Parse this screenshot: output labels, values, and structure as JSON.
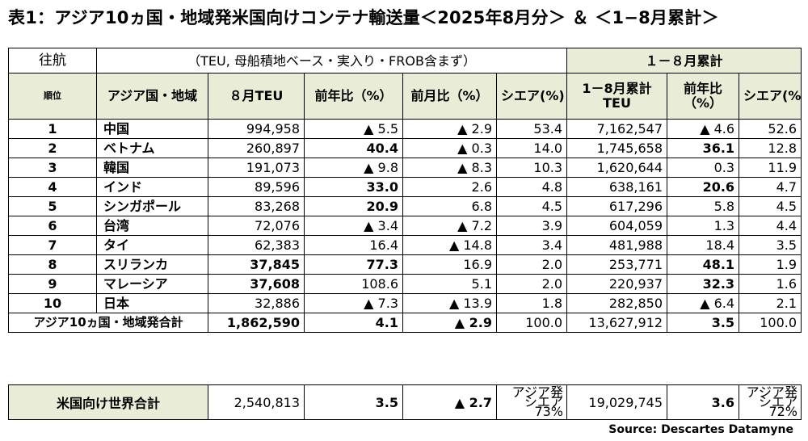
{
  "title": "表1：アジア10ヵ国・地域発米国向けコンテナ輸送量＜2025年8月分＞ ＆ ＜1−8月累計＞",
  "header": {
    "route_label": "往航",
    "note": "（TEU, 母船積地ベース・実入り・FROB含まず）",
    "cumulative_group": "１－８月累計",
    "rank": "順位",
    "country": "アジア国・地域",
    "aug_teu": "８月TEU",
    "yoy": "前年比（%）",
    "mom": "前月比（%）",
    "share": "シエア(%)",
    "cum_teu_line1": "1－8月累計",
    "cum_teu_line2": "TEU",
    "cum_yoy_line1": "前年比",
    "cum_yoy_line2": "（%）",
    "cum_share": "シエア(%)"
  },
  "rows": [
    {
      "rank": "1",
      "country": "中国",
      "teu": "994,958",
      "yoy": "▲ 5.5",
      "mom": "▲ 2.9",
      "share": "53.4",
      "cum_teu": "7,162,547",
      "cum_yoy": "▲ 4.6",
      "cum_share": "52.6"
    },
    {
      "rank": "2",
      "country": "ベトナム",
      "teu": "260,897",
      "yoy": "40.4",
      "mom": "▲ 0.3",
      "share": "14.0",
      "cum_teu": "1,745,658",
      "cum_yoy": "36.1",
      "cum_share": "12.8"
    },
    {
      "rank": "3",
      "country": "韓国",
      "teu": "191,073",
      "yoy": "▲ 9.8",
      "mom": "▲ 8.3",
      "share": "10.3",
      "cum_teu": "1,620,644",
      "cum_yoy": "0.3",
      "cum_share": "11.9"
    },
    {
      "rank": "4",
      "country": "インド",
      "teu": "89,596",
      "yoy": "33.0",
      "mom": "2.6",
      "share": "4.8",
      "cum_teu": "638,161",
      "cum_yoy": "20.6",
      "cum_share": "4.7"
    },
    {
      "rank": "5",
      "country": "シンガポール",
      "teu": "83,268",
      "yoy": "20.9",
      "mom": "6.8",
      "share": "4.5",
      "cum_teu": "617,296",
      "cum_yoy": "5.8",
      "cum_share": "4.5"
    },
    {
      "rank": "6",
      "country": "台湾",
      "teu": "72,076",
      "yoy": "▲ 3.4",
      "mom": "▲ 7.2",
      "share": "3.9",
      "cum_teu": "604,059",
      "cum_yoy": "1.3",
      "cum_share": "4.4"
    },
    {
      "rank": "7",
      "country": "タイ",
      "teu": "62,383",
      "yoy": "16.4",
      "mom": "▲ 14.8",
      "share": "3.4",
      "cum_teu": "481,988",
      "cum_yoy": "18.4",
      "cum_share": "3.5"
    },
    {
      "rank": "8",
      "country": "スリランカ",
      "teu": "37,845",
      "yoy": "77.3",
      "mom": "16.9",
      "share": "2.0",
      "cum_teu": "253,771",
      "cum_yoy": "48.1",
      "cum_share": "1.9"
    },
    {
      "rank": "9",
      "country": "マレーシア",
      "teu": "37,608",
      "yoy": "108.6",
      "mom": "5.1",
      "share": "2.0",
      "cum_teu": "220,937",
      "cum_yoy": "32.3",
      "cum_share": "1.6"
    },
    {
      "rank": "10",
      "country": "日本",
      "teu": "32,886",
      "yoy": "▲ 7.3",
      "mom": "▲ 13.9",
      "share": "1.8",
      "cum_teu": "282,850",
      "cum_yoy": "▲ 6.4",
      "cum_share": "2.1"
    }
  ],
  "subtotal": {
    "label": "アジア10ヵ国・地域発合計",
    "teu": "1,862,590",
    "yoy": "4.1",
    "mom": "▲ 2.9",
    "share": "100.0",
    "cum_teu": "13,627,912",
    "cum_yoy": "3.5",
    "cum_share": "100.0"
  },
  "world_total": {
    "label": "米国向け世界合計",
    "teu": "2,540,813",
    "yoy": "3.5",
    "mom": "▲ 2.7",
    "share_label": "アジア発シエア",
    "share": "73%",
    "cum_teu": "19,029,745",
    "cum_yoy": "3.6",
    "cum_share_label": "アジア発シエア",
    "cum_share": "72%"
  },
  "source": "Source: Descartes Datamyne"
}
